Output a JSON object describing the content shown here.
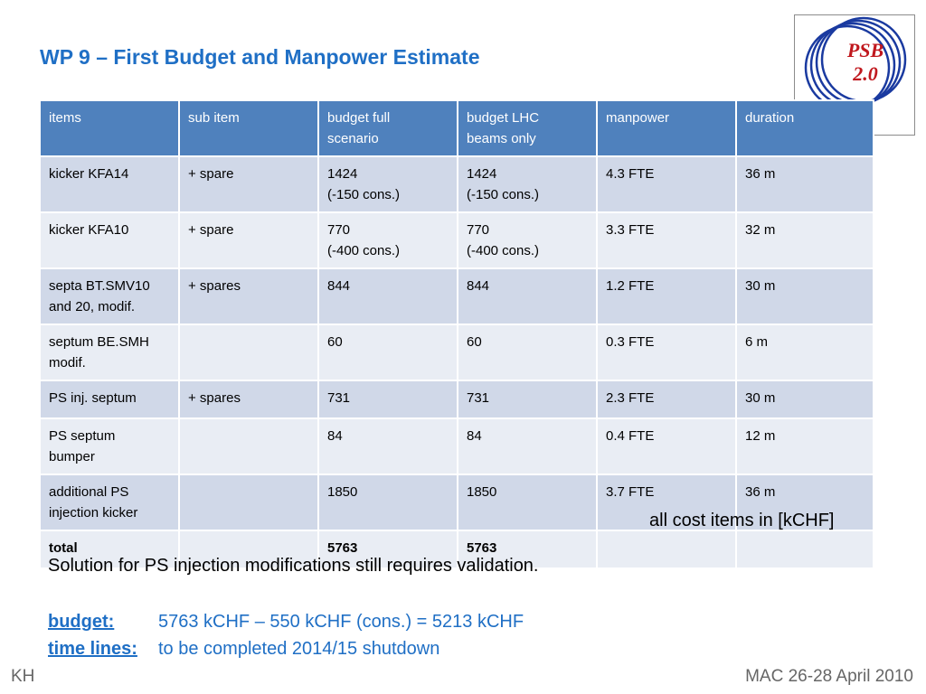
{
  "title": "WP 9 – First Budget and Manpower Estimate",
  "logo": {
    "line1": "PSB",
    "line2": "2.0"
  },
  "table": {
    "headers": [
      {
        "l1": "items",
        "l2": ""
      },
      {
        "l1": "sub item",
        "l2": ""
      },
      {
        "l1": "budget full",
        "l2": "scenario"
      },
      {
        "l1": "budget LHC",
        "l2": "beams only"
      },
      {
        "l1": "manpower",
        "l2": ""
      },
      {
        "l1": "duration",
        "l2": ""
      }
    ],
    "rows": [
      {
        "item": {
          "l1": "kicker KFA14",
          "l2": ""
        },
        "sub": "+ spare",
        "full": {
          "l1": "1424",
          "l2": "(-150 cons.)"
        },
        "lhc": {
          "l1": "1424",
          "l2": "(-150 cons.)"
        },
        "manpower": "4.3 FTE",
        "duration": "36 m"
      },
      {
        "item": {
          "l1": "kicker KFA10",
          "l2": ""
        },
        "sub": "+ spare",
        "full": {
          "l1": "770",
          "l2": "(-400 cons.)"
        },
        "lhc": {
          "l1": "770",
          "l2": "(-400 cons.)"
        },
        "manpower": "3.3 FTE",
        "duration": "32 m"
      },
      {
        "item": {
          "l1": "septa BT.SMV10",
          "l2": "and 20, modif."
        },
        "sub": "+ spares",
        "full": {
          "l1": "844",
          "l2": ""
        },
        "lhc": {
          "l1": "844",
          "l2": ""
        },
        "manpower": "1.2 FTE",
        "duration": "30 m"
      },
      {
        "item": {
          "l1": "septum BE.SMH",
          "l2": "modif."
        },
        "sub": "",
        "full": {
          "l1": "60",
          "l2": ""
        },
        "lhc": {
          "l1": "60",
          "l2": ""
        },
        "manpower": "0.3 FTE",
        "duration": "6 m"
      },
      {
        "item": {
          "l1": "PS inj. septum",
          "l2": ""
        },
        "sub": "+ spares",
        "full": {
          "l1": "731",
          "l2": ""
        },
        "lhc": {
          "l1": "731",
          "l2": ""
        },
        "manpower": "2.3 FTE",
        "duration": "30 m"
      },
      {
        "item": {
          "l1": "PS septum",
          "l2": "bumper"
        },
        "sub": "",
        "full": {
          "l1": "84",
          "l2": ""
        },
        "lhc": {
          "l1": "84",
          "l2": ""
        },
        "manpower": "0.4 FTE",
        "duration": "12 m"
      },
      {
        "item": {
          "l1": "additional PS",
          "l2": "injection kicker"
        },
        "sub": "",
        "full": {
          "l1": "1850",
          "l2": ""
        },
        "lhc": {
          "l1": "1850",
          "l2": ""
        },
        "manpower": "3.7 FTE",
        "duration": "36 m"
      }
    ],
    "total": {
      "label": "total",
      "sub": "",
      "full": "5763",
      "lhc": "5763"
    }
  },
  "note": "all cost items in [kCHF]",
  "solution": "Solution for PS injection modifications still requires validation.",
  "budget": {
    "label": "budget:",
    "text": "5763 kCHF – 550 kCHF (cons.) = 5213 kCHF"
  },
  "timelines": {
    "label": "time lines:",
    "text": "to be completed 2014/15 shutdown"
  },
  "footer": {
    "left": "KH",
    "right": "MAC 26-28 April 2010"
  },
  "colors": {
    "title": "#1f6fc5",
    "header_bg": "#4f81bd",
    "row_odd": "#d0d8e8",
    "row_even": "#e9edf4",
    "logo_ring": "#1a3aa0",
    "logo_text": "#c0181e"
  }
}
